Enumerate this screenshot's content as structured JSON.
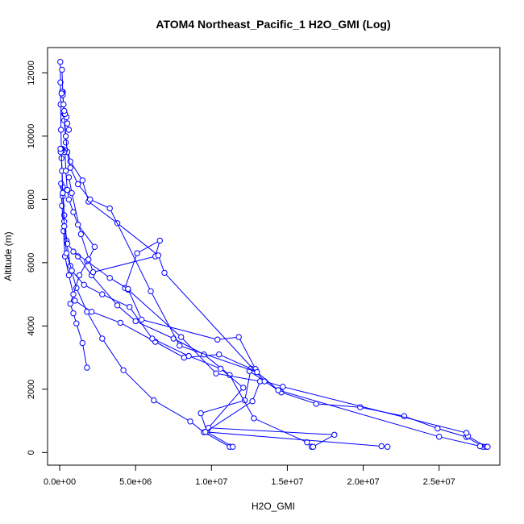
{
  "chart_data": {
    "type": "line",
    "title": "ATOM4 Northeast_Pacific_1 H2O_GMI (Log)",
    "xlabel": "H2O_GMI",
    "ylabel": "Altitude (m)",
    "xlim": [
      -800000,
      29000000
    ],
    "ylim": [
      -400,
      12800
    ],
    "x_ticks": [
      0,
      5000000,
      10000000,
      15000000,
      20000000,
      25000000
    ],
    "x_tick_labels": [
      "0.0e+00",
      "5.0e+06",
      "1.0e+07",
      "1.5e+07",
      "2.0e+07",
      "2.5e+07"
    ],
    "y_ticks": [
      0,
      2000,
      4000,
      6000,
      8000,
      10000,
      12000
    ],
    "y_tick_labels": [
      "0",
      "2000",
      "4000",
      "6000",
      "8000",
      "10000",
      "12000"
    ],
    "markers": "open-circle",
    "grid": false,
    "color": "#0000ff",
    "series": [
      {
        "x": [
          11200000,
          9500000,
          8600000,
          6200000,
          4200000,
          2800000,
          1800000,
          1100000,
          700000,
          450000,
          300000,
          200000,
          120000,
          80000,
          60000,
          50000,
          40000
        ],
        "y": [
          180,
          640,
          980,
          1650,
          2600,
          3600,
          4450,
          5200,
          5900,
          6700,
          7500,
          8400,
          9300,
          10200,
          11000,
          11700,
          12350
        ]
      },
      {
        "x": [
          11400000,
          9700000,
          9300000,
          12200000,
          12600000,
          10500000,
          8200000,
          6300000,
          4000000,
          2100000,
          1000000,
          600000,
          350000,
          250000,
          150000,
          90000
        ],
        "y": [
          180,
          650,
          1240,
          1650,
          2650,
          3100,
          3000,
          3500,
          4100,
          4450,
          4800,
          5600,
          6200,
          7000,
          7800,
          8500
        ]
      },
      {
        "x": [
          16600000,
          16300000,
          12800000,
          11200000,
          9500000,
          7500000,
          5000000,
          3800000,
          2100000,
          1200000,
          500000,
          300000,
          200000,
          150000,
          100000
        ],
        "y": [
          180,
          320,
          1080,
          2450,
          3100,
          3600,
          4150,
          4650,
          5600,
          6200,
          6600,
          7300,
          8100,
          8900,
          9600
        ]
      },
      {
        "x": [
          16700000,
          18100000,
          9800000,
          12100000,
          10600000,
          8500000,
          6100000,
          4600000,
          2800000,
          1600000,
          800000,
          450000,
          300000,
          200000
        ],
        "y": [
          180,
          560,
          780,
          2050,
          2650,
          3050,
          3600,
          4600,
          5000,
          5300,
          5750,
          6300,
          7150,
          8200
        ]
      },
      {
        "x": [
          21600000,
          21200000,
          9600000,
          12700000,
          13200000,
          10300000,
          8000000,
          4500000,
          4300000,
          5100000,
          6600000,
          6300000,
          2200000,
          1400000,
          800000,
          600000
        ],
        "y": [
          180,
          200,
          650,
          1620,
          2250,
          2500,
          3650,
          5150,
          5200,
          6300,
          6700,
          6200,
          5700,
          6900,
          8200,
          8700
        ]
      },
      {
        "x": [
          27900000,
          26800000,
          24900000,
          22700000,
          19800000,
          16900000,
          14600000,
          12500000,
          12900000,
          11800000,
          10400000,
          5400000,
          4500000,
          3300000,
          1800000,
          900000
        ],
        "y": [
          180,
          490,
          760,
          1150,
          1430,
          1540,
          1900,
          2570,
          2640,
          3650,
          3570,
          4200,
          5170,
          5520,
          6050,
          6350
        ]
      },
      {
        "x": [
          28100000,
          26900000,
          26800000,
          14700000,
          13500000,
          6900000,
          6500000,
          3800000,
          1900000,
          1500000,
          700000,
          400000,
          300000,
          200000,
          150000
        ],
        "y": [
          180,
          520,
          620,
          2080,
          2250,
          5680,
          6230,
          7250,
          7930,
          8600,
          9200,
          9800,
          10500,
          11400,
          12100
        ]
      },
      {
        "x": [
          28200000,
          27700000,
          25000000,
          14400000,
          13000000,
          7900000,
          6000000,
          3300000,
          2000000,
          1200000,
          700000,
          500000,
          400000,
          300000
        ],
        "y": [
          180,
          200,
          500,
          1970,
          2540,
          3380,
          5100,
          7720,
          8000,
          8480,
          9000,
          9500,
          10000,
          10700
        ]
      },
      {
        "x": [
          1800000,
          1500000,
          1100000,
          900000,
          700000,
          900000,
          1300000,
          1900000,
          2300000,
          1200000,
          900000,
          600000,
          500000,
          400000,
          350000
        ],
        "y": [
          2680,
          3460,
          4080,
          4400,
          4700,
          5000,
          5600,
          6100,
          6500,
          7200,
          7600,
          8000,
          8300,
          8900,
          9550
        ]
      },
      {
        "x": [
          600000,
          500000,
          450000,
          350000,
          300000,
          250000,
          200000,
          150000,
          120000
        ],
        "y": [
          10200,
          10400,
          10600,
          10700,
          10800,
          11000,
          11300,
          11400,
          11350
        ]
      },
      {
        "x": [
          300000,
          200000,
          150000,
          100000,
          80000,
          60000,
          50000
        ],
        "y": [
          9500,
          9550,
          9600,
          9600,
          9550,
          9500,
          9600
        ]
      }
    ]
  }
}
